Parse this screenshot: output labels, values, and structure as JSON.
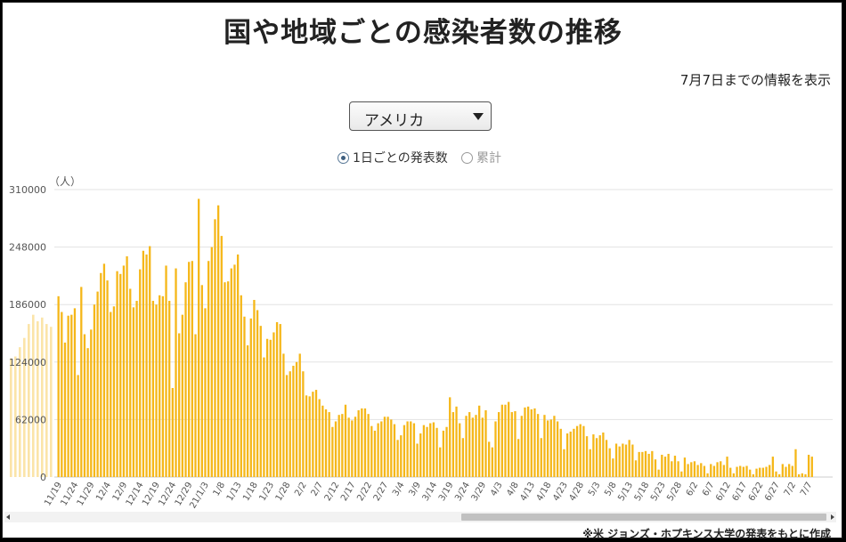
{
  "title": "国や地域ごとの感染者数の推移",
  "info_text": "7月7日までの情報を表示",
  "country_select": {
    "value": "アメリカ"
  },
  "mode_options": [
    {
      "label": "1日ごとの発表数",
      "selected": true
    },
    {
      "label": "累計",
      "selected": false
    }
  ],
  "source_note": "※米 ジョンズ・ホプキンス大学の発表をもとに作成",
  "colors": {
    "bar": "#f5b719",
    "bar_faded": "#fbe4a8",
    "grid": "#e3e3e3"
  },
  "chart_data": {
    "type": "bar",
    "unit_label": "（人）",
    "y_ticks": [
      0,
      62000,
      124000,
      186000,
      248000,
      310000
    ],
    "ylim": [
      0,
      310000
    ],
    "x_tick_labels": [
      "11/19",
      "11/24",
      "11/29",
      "12/4",
      "12/9",
      "12/14",
      "12/19",
      "12/24",
      "12/29",
      "21/1/3",
      "1/8",
      "1/13",
      "1/18",
      "1/23",
      "1/28",
      "2/2",
      "2/7",
      "2/12",
      "2/17",
      "2/22",
      "2/27",
      "3/4",
      "3/9",
      "3/14",
      "3/19",
      "3/24",
      "3/29",
      "4/3",
      "4/8",
      "4/13",
      "4/18",
      "4/23",
      "4/28",
      "5/3",
      "5/8",
      "5/13",
      "5/18",
      "5/23",
      "5/28",
      "6/2",
      "6/7",
      "6/12",
      "6/17",
      "6/22",
      "6/27",
      "7/2",
      "7/7"
    ],
    "faded_values": [
      128000,
      130000,
      140000,
      150000,
      165000,
      175000,
      168000,
      172000,
      165000,
      162000
    ],
    "values": [
      195000,
      178000,
      145000,
      174000,
      175000,
      182000,
      110000,
      205000,
      154000,
      139000,
      159000,
      186000,
      200000,
      220000,
      230000,
      212000,
      178000,
      184000,
      222000,
      219000,
      228000,
      238000,
      203000,
      183000,
      190000,
      224000,
      244000,
      240000,
      249000,
      190000,
      186000,
      196000,
      195000,
      228000,
      190000,
      96000,
      225000,
      155000,
      175000,
      210000,
      232000,
      233000,
      154000,
      300000,
      207000,
      182000,
      233000,
      248000,
      278000,
      293000,
      260000,
      210000,
      211000,
      225000,
      229000,
      240000,
      196000,
      173000,
      142000,
      171000,
      191000,
      180000,
      163000,
      129000,
      149000,
      148000,
      156000,
      167000,
      165000,
      133000,
      110000,
      114000,
      120000,
      124000,
      133000,
      114000,
      88000,
      87000,
      92000,
      94000,
      84000,
      77000,
      73000,
      70000,
      54000,
      60000,
      67000,
      68000,
      78000,
      64000,
      61000,
      65000,
      72000,
      74000,
      74000,
      68000,
      55000,
      50000,
      58000,
      60000,
      65000,
      65000,
      62000,
      57000,
      40000,
      45000,
      56000,
      60000,
      60000,
      58000,
      36000,
      47000,
      56000,
      54000,
      58000,
      59000,
      53000,
      32000,
      50000,
      54000,
      86000,
      70000,
      76000,
      58000,
      42000,
      66000,
      70000,
      64000,
      67000,
      77000,
      64000,
      72000,
      38000,
      32000,
      60000,
      70000,
      78000,
      78000,
      81000,
      70000,
      71000,
      41000,
      66000,
      75000,
      76000,
      73000,
      74000,
      68000,
      42000,
      67000,
      61000,
      62000,
      66000,
      60000,
      52000,
      30000,
      47000,
      49000,
      52000,
      55000,
      57000,
      55000,
      44000,
      30000,
      46000,
      42000,
      45000,
      48000,
      40000,
      31000,
      20000,
      36000,
      33000,
      36000,
      35000,
      40000,
      35000,
      18000,
      27000,
      27000,
      28000,
      25000,
      28000,
      19000,
      8000,
      24000,
      22000,
      25000,
      17000,
      23000,
      17000,
      6000,
      21000,
      14000,
      16000,
      17000,
      13000,
      15000,
      12000,
      4000,
      14000,
      12000,
      16000,
      17000,
      13000,
      22000,
      10000,
      4000,
      11000,
      12000,
      11000,
      12000,
      8000,
      3000,
      9000,
      10000,
      10000,
      11000,
      13000,
      22000,
      6000,
      3000,
      14000,
      11000,
      14000,
      12000,
      30000,
      3000,
      4000,
      3000,
      24000,
      22000
    ]
  }
}
